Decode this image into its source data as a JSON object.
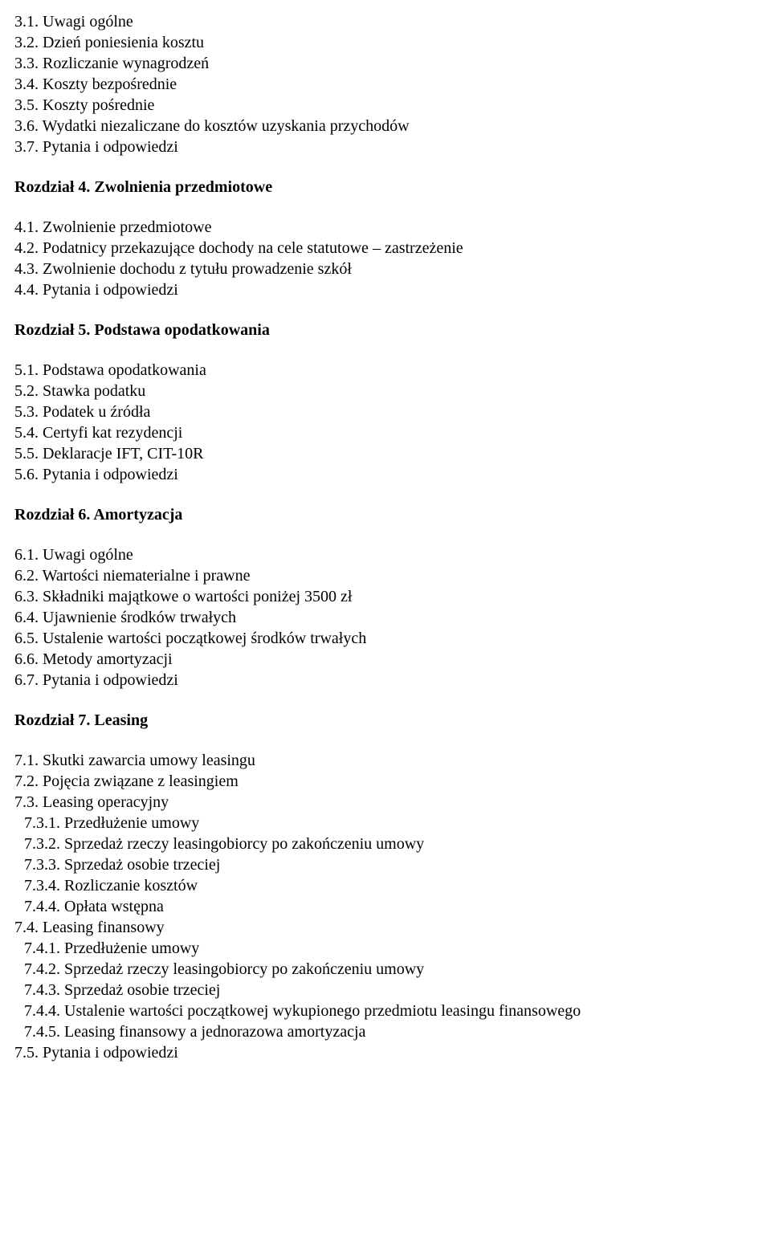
{
  "s3": {
    "items": [
      "3.1. Uwagi ogólne",
      "3.2. Dzień poniesienia kosztu",
      "3.3. Rozliczanie wynagrodzeń",
      "3.4. Koszty bezpośrednie",
      "3.5. Koszty pośrednie",
      "3.6. Wydatki niezaliczane do kosztów uzyskania przychodów",
      "3.7. Pytania i odpowiedzi"
    ]
  },
  "s4": {
    "heading": "Rozdział 4. Zwolnienia przedmiotowe",
    "items": [
      "4.1. Zwolnienie przedmiotowe",
      "4.2. Podatnicy przekazujące dochody na cele statutowe – zastrzeżenie",
      "4.3. Zwolnienie dochodu z tytułu prowadzenie szkół",
      "4.4. Pytania i odpowiedzi"
    ]
  },
  "s5": {
    "heading": "Rozdział 5. Podstawa opodatkowania",
    "items": [
      "5.1. Podstawa opodatkowania",
      "5.2. Stawka podatku",
      "5.3. Podatek u źródła",
      "5.4. Certyfi kat rezydencji",
      "5.5. Deklaracje IFT, CIT-10R",
      "5.6. Pytania i odpowiedzi"
    ]
  },
  "s6": {
    "heading": "Rozdział 6. Amortyzacja",
    "items": [
      "6.1. Uwagi ogólne",
      "6.2. Wartości niematerialne i prawne",
      "6.3. Składniki majątkowe o wartości poniżej 3500 zł",
      "6.4. Ujawnienie środków trwałych",
      "6.5. Ustalenie wartości początkowej środków trwałych",
      "6.6. Metody amortyzacji",
      "6.7. Pytania i odpowiedzi"
    ]
  },
  "s7": {
    "heading": "Rozdział 7. Leasing",
    "items": [
      {
        "text": "7.1. Skutki zawarcia umowy leasingu",
        "indent": 0
      },
      {
        "text": "7.2. Pojęcia związane z leasingiem",
        "indent": 0
      },
      {
        "text": "7.3. Leasing operacyjny",
        "indent": 0
      },
      {
        "text": "7.3.1. Przedłużenie umowy",
        "indent": 1
      },
      {
        "text": "7.3.2. Sprzedaż rzeczy leasingobiorcy po zakończeniu umowy",
        "indent": 1
      },
      {
        "text": "7.3.3. Sprzedaż osobie trzeciej",
        "indent": 1
      },
      {
        "text": "7.3.4. Rozliczanie kosztów",
        "indent": 1
      },
      {
        "text": "7.4.4. Opłata wstępna",
        "indent": 1
      },
      {
        "text": "7.4. Leasing finansowy",
        "indent": 0
      },
      {
        "text": "7.4.1. Przedłużenie umowy",
        "indent": 1
      },
      {
        "text": "7.4.2. Sprzedaż rzeczy leasingobiorcy po zakończeniu umowy",
        "indent": 1
      },
      {
        "text": "7.4.3. Sprzedaż osobie trzeciej",
        "indent": 1
      },
      {
        "text": "7.4.4. Ustalenie wartości początkowej wykupionego przedmiotu leasingu finansowego",
        "indent": 1
      },
      {
        "text": "7.4.5. Leasing finansowy a jednorazowa amortyzacja",
        "indent": 1
      },
      {
        "text": "7.5. Pytania i odpowiedzi",
        "indent": 0
      }
    ]
  }
}
